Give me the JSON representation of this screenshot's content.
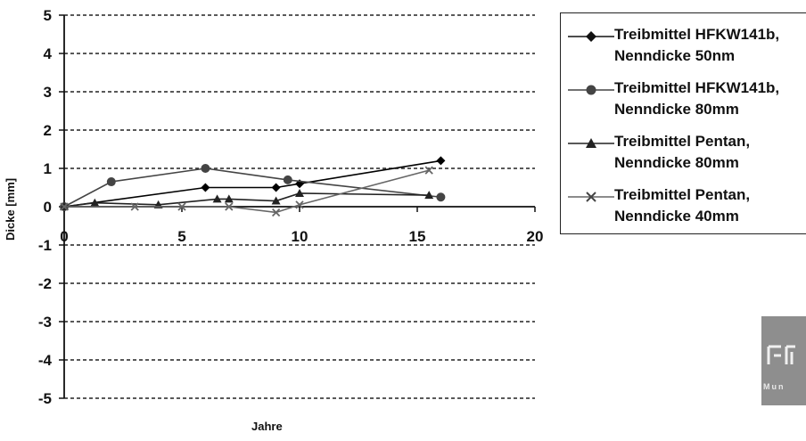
{
  "chart_data": {
    "type": "line",
    "title": "",
    "xlabel": "Jahre",
    "ylabel": "Dicke [mm]",
    "xlim": [
      0,
      20
    ],
    "ylim": [
      -5,
      5
    ],
    "x_ticks": [
      0,
      5,
      10,
      15,
      20
    ],
    "y_ticks": [
      -5,
      -4,
      -3,
      -2,
      -1,
      0,
      1,
      2,
      3,
      4,
      5
    ],
    "x_tick_labels": [
      "0",
      "5",
      "10",
      "15",
      "20"
    ],
    "y_tick_labels": [
      "-5",
      "-4",
      "-3",
      "-2",
      "-1",
      "0",
      "1",
      "2",
      "3",
      "4",
      "5"
    ],
    "grid": "dashed horizontal",
    "legend_position": "right",
    "series": [
      {
        "name": "Treibmittel HFKW141b,\nNenndicke 50nm",
        "marker": "diamond",
        "color": "#000000",
        "x": [
          0,
          6,
          9,
          10,
          16
        ],
        "y": [
          0,
          0.5,
          0.5,
          0.6,
          1.2
        ]
      },
      {
        "name": "Treibmittel HFKW141b,\nNenndicke 80mm",
        "marker": "circle",
        "color": "#444444",
        "x": [
          0,
          2,
          6,
          9.5,
          16
        ],
        "y": [
          0,
          0.65,
          1.0,
          0.7,
          0.25
        ]
      },
      {
        "name": "Treibmittel Pentan,\nNenndicke 80mm",
        "marker": "triangle",
        "color": "#222222",
        "x": [
          0,
          1.3,
          4,
          6.5,
          7,
          9,
          10,
          15.5
        ],
        "y": [
          0,
          0.1,
          0.05,
          0.2,
          0.2,
          0.15,
          0.35,
          0.3
        ]
      },
      {
        "name": "Treibmittel Pentan,\nNenndicke 40mm",
        "marker": "x",
        "color": "#666666",
        "x": [
          0,
          3,
          5,
          7,
          9,
          10,
          15.5
        ],
        "y": [
          0,
          0,
          0,
          0,
          -0.15,
          0.05,
          0.95
        ]
      }
    ]
  },
  "logo": {
    "text": "Mun"
  }
}
